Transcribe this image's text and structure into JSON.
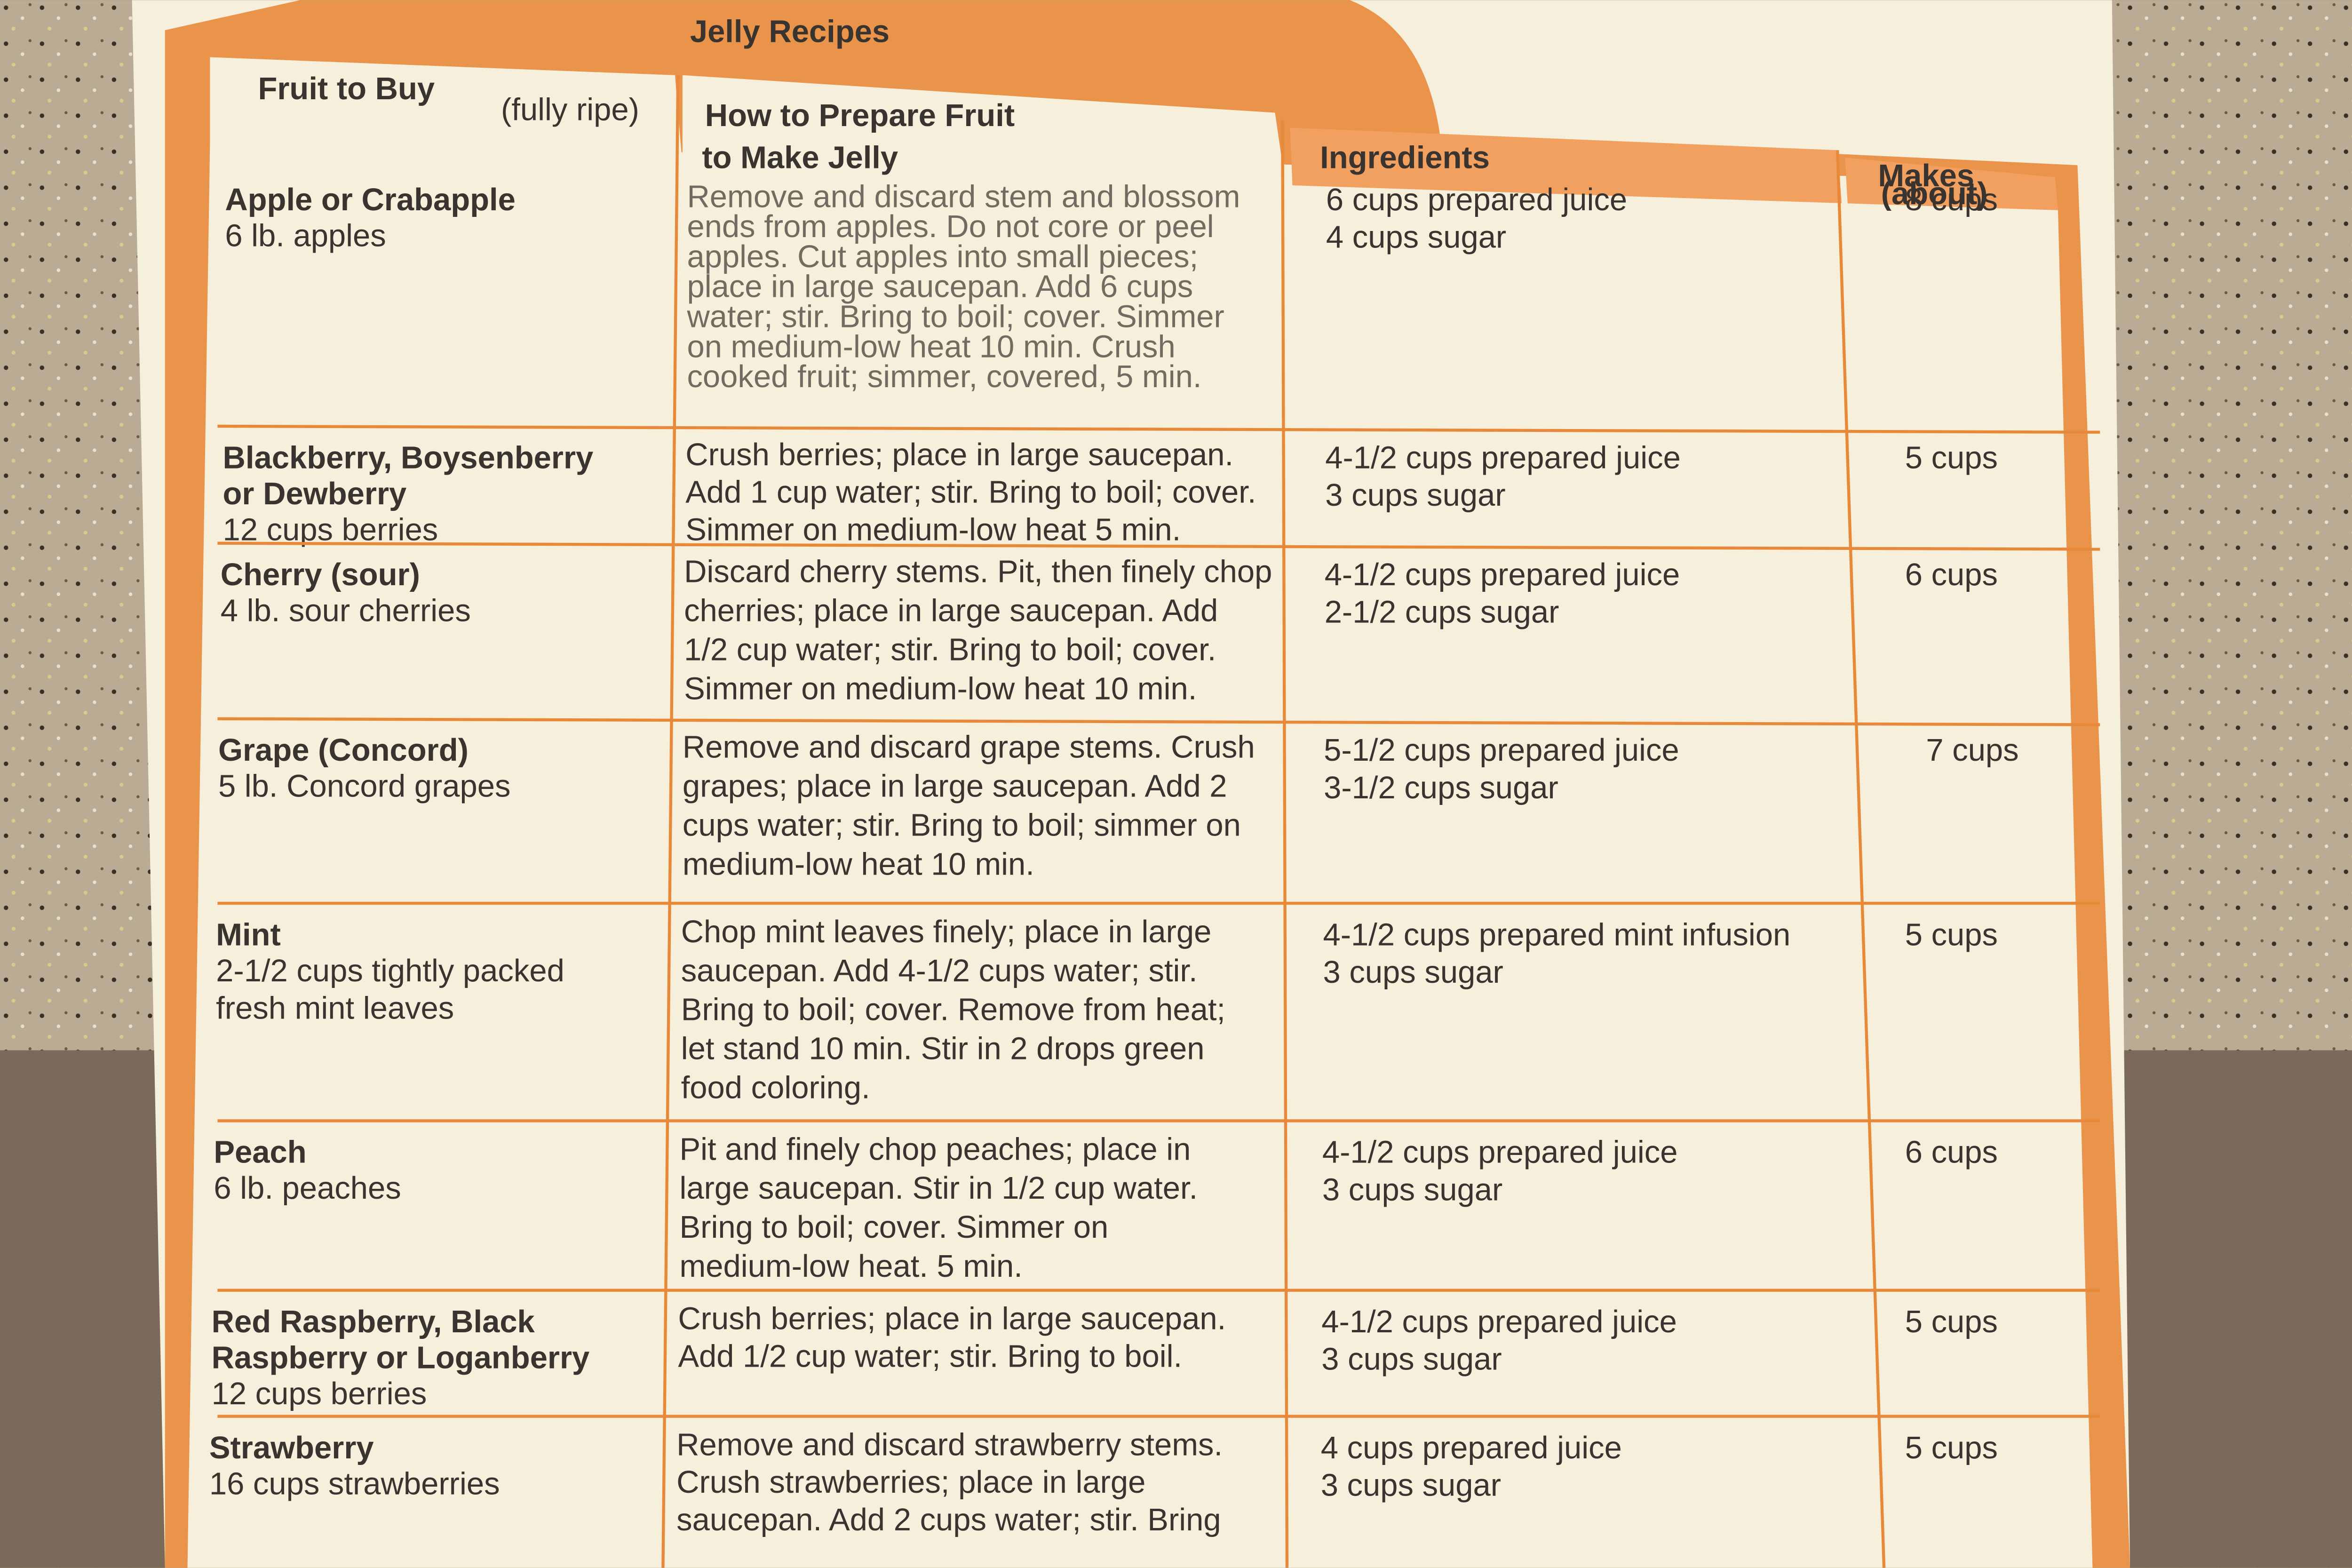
{
  "title": "Jelly Recipes",
  "header": {
    "fruit": "Fruit to Buy",
    "fruit_note": "(fully ripe)",
    "prepare": [
      "How to Prepare Fruit",
      "to Make Jelly"
    ],
    "ingredients": "Ingredients",
    "makes": [
      "Makes",
      "(about)"
    ]
  },
  "rows": [
    {
      "fruit": [
        "Apple or Crabapple"
      ],
      "amount": [
        "6 lb. apples"
      ],
      "prepare": [
        "Remove and discard stem and blossom",
        "ends from apples. Do not core or peel",
        "apples. Cut apples into small pieces;",
        "place in large saucepan. Add 6 cups",
        "water; stir. Bring to boil; cover. Simmer",
        "on medium-low heat 10 min. Crush",
        "cooked fruit; simmer, covered, 5 min."
      ],
      "ingredients": [
        "6 cups prepared juice",
        "4 cups sugar"
      ],
      "makes": "8 cups"
    },
    {
      "fruit": [
        "Blackberry, Boysenberry",
        "or Dewberry"
      ],
      "amount": [
        "12 cups berries"
      ],
      "prepare": [
        "Crush berries; place in large saucepan.",
        "Add 1 cup water; stir. Bring to boil; cover.",
        "Simmer on medium-low heat 5 min."
      ],
      "ingredients": [
        "4-1/2 cups prepared juice",
        "3 cups sugar"
      ],
      "makes": "5 cups"
    },
    {
      "fruit": [
        "Cherry (sour)"
      ],
      "amount": [
        "4 lb. sour cherries"
      ],
      "prepare": [
        "Discard cherry stems. Pit, then finely chop",
        "cherries; place in large saucepan. Add",
        "1/2 cup water; stir. Bring to boil; cover.",
        "Simmer on medium-low heat 10 min."
      ],
      "ingredients": [
        "4-1/2 cups prepared juice",
        "2-1/2 cups sugar"
      ],
      "makes": "6 cups"
    },
    {
      "fruit": [
        "Grape (Concord)"
      ],
      "amount": [
        "5 lb. Concord grapes"
      ],
      "prepare": [
        "Remove and discard grape stems. Crush",
        "grapes; place in large saucepan. Add 2",
        "cups water; stir. Bring to boil; simmer on",
        "medium-low heat 10 min."
      ],
      "ingredients": [
        "5-1/2 cups prepared juice",
        "3-1/2 cups sugar"
      ],
      "makes": "7 cups"
    },
    {
      "fruit": [
        "Mint"
      ],
      "amount": [
        "2-1/2 cups tightly packed",
        "fresh mint leaves"
      ],
      "prepare": [
        "Chop mint leaves finely; place in large",
        "saucepan. Add 4-1/2 cups water; stir.",
        "Bring to boil; cover. Remove from heat;",
        "let stand 10 min. Stir in 2 drops green",
        "food coloring."
      ],
      "ingredients": [
        "4-1/2 cups prepared mint infusion",
        "3 cups sugar"
      ],
      "makes": "5 cups"
    },
    {
      "fruit": [
        "Peach"
      ],
      "amount": [
        "6 lb. peaches"
      ],
      "prepare": [
        "Pit and finely chop peaches; place in",
        "large saucepan. Stir in 1/2 cup water.",
        "Bring to boil; cover. Simmer on",
        "medium-low heat. 5 min."
      ],
      "ingredients": [
        "4-1/2 cups prepared juice",
        "3 cups sugar"
      ],
      "makes": "6 cups"
    },
    {
      "fruit": [
        "Red Raspberry, Black",
        "Raspberry or Loganberry"
      ],
      "amount": [
        "12 cups berries"
      ],
      "prepare": [
        "Crush berries; place in large saucepan.",
        "Add 1/2 cup water; stir. Bring to boil."
      ],
      "ingredients": [
        "4-1/2 cups prepared juice",
        "3 cups sugar"
      ],
      "makes": "5 cups"
    },
    {
      "fruit": [
        "Strawberry"
      ],
      "amount": [
        "16 cups strawberries"
      ],
      "prepare": [
        "Remove and discard strawberry stems.",
        "Crush strawberries; place in large",
        "saucepan. Add 2 cups water; stir. Bring"
      ],
      "ingredients": [
        "4 cups prepared juice",
        "3 cups sugar"
      ],
      "makes": "5 cups"
    }
  ]
}
